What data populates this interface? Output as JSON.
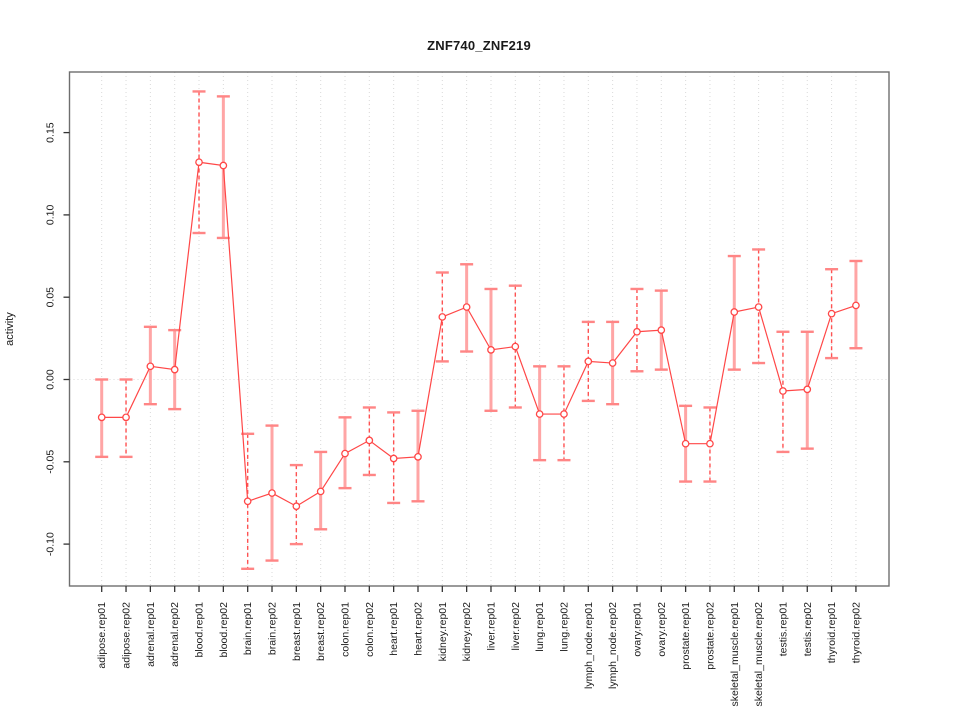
{
  "chart_data": {
    "type": "scatter",
    "title": "ZNF740_ZNF219",
    "xlabel": "",
    "ylabel": "activity",
    "legend": "none",
    "grid": "vertical dotted gridline per category plus dotted zero line",
    "marker": "open-circle",
    "line_style": "points connected by thin red segments, vertical error bars with caps",
    "colors": {
      "series": "#ff4747",
      "error_bar_solid": "#ffa5a5",
      "error_bar_dashed": "#ff5252",
      "error_cap": "#ff8585",
      "gridline": "#d9d9d9",
      "frame": "#6e6e6e",
      "tick": "#333333",
      "text": "#1a1a1a"
    },
    "ylim": [
      -0.126,
      0.187
    ],
    "yticks": [
      -0.1,
      -0.05,
      0.0,
      0.05,
      0.1,
      0.15
    ],
    "ytick_labels": [
      "-0.10",
      "-0.05",
      "0.00",
      "0.05",
      "0.10",
      "0.15"
    ],
    "categories": [
      "adipose.rep01",
      "adipose.rep02",
      "adrenal.rep01",
      "adrenal.rep02",
      "blood.rep01",
      "blood.rep02",
      "brain.rep01",
      "brain.rep02",
      "breast.rep01",
      "breast.rep02",
      "colon.rep01",
      "colon.rep02",
      "heart.rep01",
      "heart.rep02",
      "kidney.rep01",
      "kidney.rep02",
      "liver.rep01",
      "liver.rep02",
      "lung.rep01",
      "lung.rep02",
      "lymph_node.rep01",
      "lymph_node.rep02",
      "ovary.rep01",
      "ovary.rep02",
      "prostate.rep01",
      "prostate.rep02",
      "skeletal_muscle.rep01",
      "skeletal_muscle.rep02",
      "testis.rep01",
      "testis.rep02",
      "thyroid.rep01",
      "thyroid.rep02"
    ],
    "points": [
      {
        "label": "adipose.rep01",
        "value": -0.023,
        "lo": -0.047,
        "hi": 0.0,
        "bar_style": "solid"
      },
      {
        "label": "adipose.rep02",
        "value": -0.023,
        "lo": -0.047,
        "hi": 0.0,
        "bar_style": "dashed"
      },
      {
        "label": "adrenal.rep01",
        "value": 0.008,
        "lo": -0.015,
        "hi": 0.032,
        "bar_style": "solid"
      },
      {
        "label": "adrenal.rep02",
        "value": 0.006,
        "lo": -0.018,
        "hi": 0.03,
        "bar_style": "solid"
      },
      {
        "label": "blood.rep01",
        "value": 0.132,
        "lo": 0.089,
        "hi": 0.175,
        "bar_style": "dashed"
      },
      {
        "label": "blood.rep02",
        "value": 0.13,
        "lo": 0.086,
        "hi": 0.172,
        "bar_style": "solid"
      },
      {
        "label": "brain.rep01",
        "value": -0.074,
        "lo": -0.115,
        "hi": -0.033,
        "bar_style": "dashed"
      },
      {
        "label": "brain.rep02",
        "value": -0.069,
        "lo": -0.11,
        "hi": -0.028,
        "bar_style": "solid"
      },
      {
        "label": "breast.rep01",
        "value": -0.077,
        "lo": -0.1,
        "hi": -0.052,
        "bar_style": "dashed"
      },
      {
        "label": "breast.rep02",
        "value": -0.068,
        "lo": -0.091,
        "hi": -0.044,
        "bar_style": "solid"
      },
      {
        "label": "colon.rep01",
        "value": -0.045,
        "lo": -0.066,
        "hi": -0.023,
        "bar_style": "solid"
      },
      {
        "label": "colon.rep02",
        "value": -0.037,
        "lo": -0.058,
        "hi": -0.017,
        "bar_style": "dashed"
      },
      {
        "label": "heart.rep01",
        "value": -0.048,
        "lo": -0.075,
        "hi": -0.02,
        "bar_style": "dashed"
      },
      {
        "label": "heart.rep02",
        "value": -0.047,
        "lo": -0.074,
        "hi": -0.019,
        "bar_style": "solid"
      },
      {
        "label": "kidney.rep01",
        "value": 0.038,
        "lo": 0.011,
        "hi": 0.065,
        "bar_style": "dashed"
      },
      {
        "label": "kidney.rep02",
        "value": 0.044,
        "lo": 0.017,
        "hi": 0.07,
        "bar_style": "solid"
      },
      {
        "label": "liver.rep01",
        "value": 0.018,
        "lo": -0.019,
        "hi": 0.055,
        "bar_style": "solid"
      },
      {
        "label": "liver.rep02",
        "value": 0.02,
        "lo": -0.017,
        "hi": 0.057,
        "bar_style": "dashed"
      },
      {
        "label": "lung.rep01",
        "value": -0.021,
        "lo": -0.049,
        "hi": 0.008,
        "bar_style": "solid"
      },
      {
        "label": "lung.rep02",
        "value": -0.021,
        "lo": -0.049,
        "hi": 0.008,
        "bar_style": "dashed"
      },
      {
        "label": "lymph_node.rep01",
        "value": 0.011,
        "lo": -0.013,
        "hi": 0.035,
        "bar_style": "dashed"
      },
      {
        "label": "lymph_node.rep02",
        "value": 0.01,
        "lo": -0.015,
        "hi": 0.035,
        "bar_style": "solid"
      },
      {
        "label": "ovary.rep01",
        "value": 0.029,
        "lo": 0.005,
        "hi": 0.055,
        "bar_style": "dashed"
      },
      {
        "label": "ovary.rep02",
        "value": 0.03,
        "lo": 0.006,
        "hi": 0.054,
        "bar_style": "solid"
      },
      {
        "label": "prostate.rep01",
        "value": -0.039,
        "lo": -0.062,
        "hi": -0.016,
        "bar_style": "solid"
      },
      {
        "label": "prostate.rep02",
        "value": -0.039,
        "lo": -0.062,
        "hi": -0.017,
        "bar_style": "dashed"
      },
      {
        "label": "skeletal_muscle.rep01",
        "value": 0.041,
        "lo": 0.006,
        "hi": 0.075,
        "bar_style": "solid"
      },
      {
        "label": "skeletal_muscle.rep02",
        "value": 0.044,
        "lo": 0.01,
        "hi": 0.079,
        "bar_style": "dashed"
      },
      {
        "label": "testis.rep01",
        "value": -0.007,
        "lo": -0.044,
        "hi": 0.029,
        "bar_style": "dashed"
      },
      {
        "label": "testis.rep02",
        "value": -0.006,
        "lo": -0.042,
        "hi": 0.029,
        "bar_style": "solid"
      },
      {
        "label": "thyroid.rep01",
        "value": 0.04,
        "lo": 0.013,
        "hi": 0.067,
        "bar_style": "dashed"
      },
      {
        "label": "thyroid.rep02",
        "value": 0.045,
        "lo": 0.019,
        "hi": 0.072,
        "bar_style": "solid"
      }
    ]
  }
}
